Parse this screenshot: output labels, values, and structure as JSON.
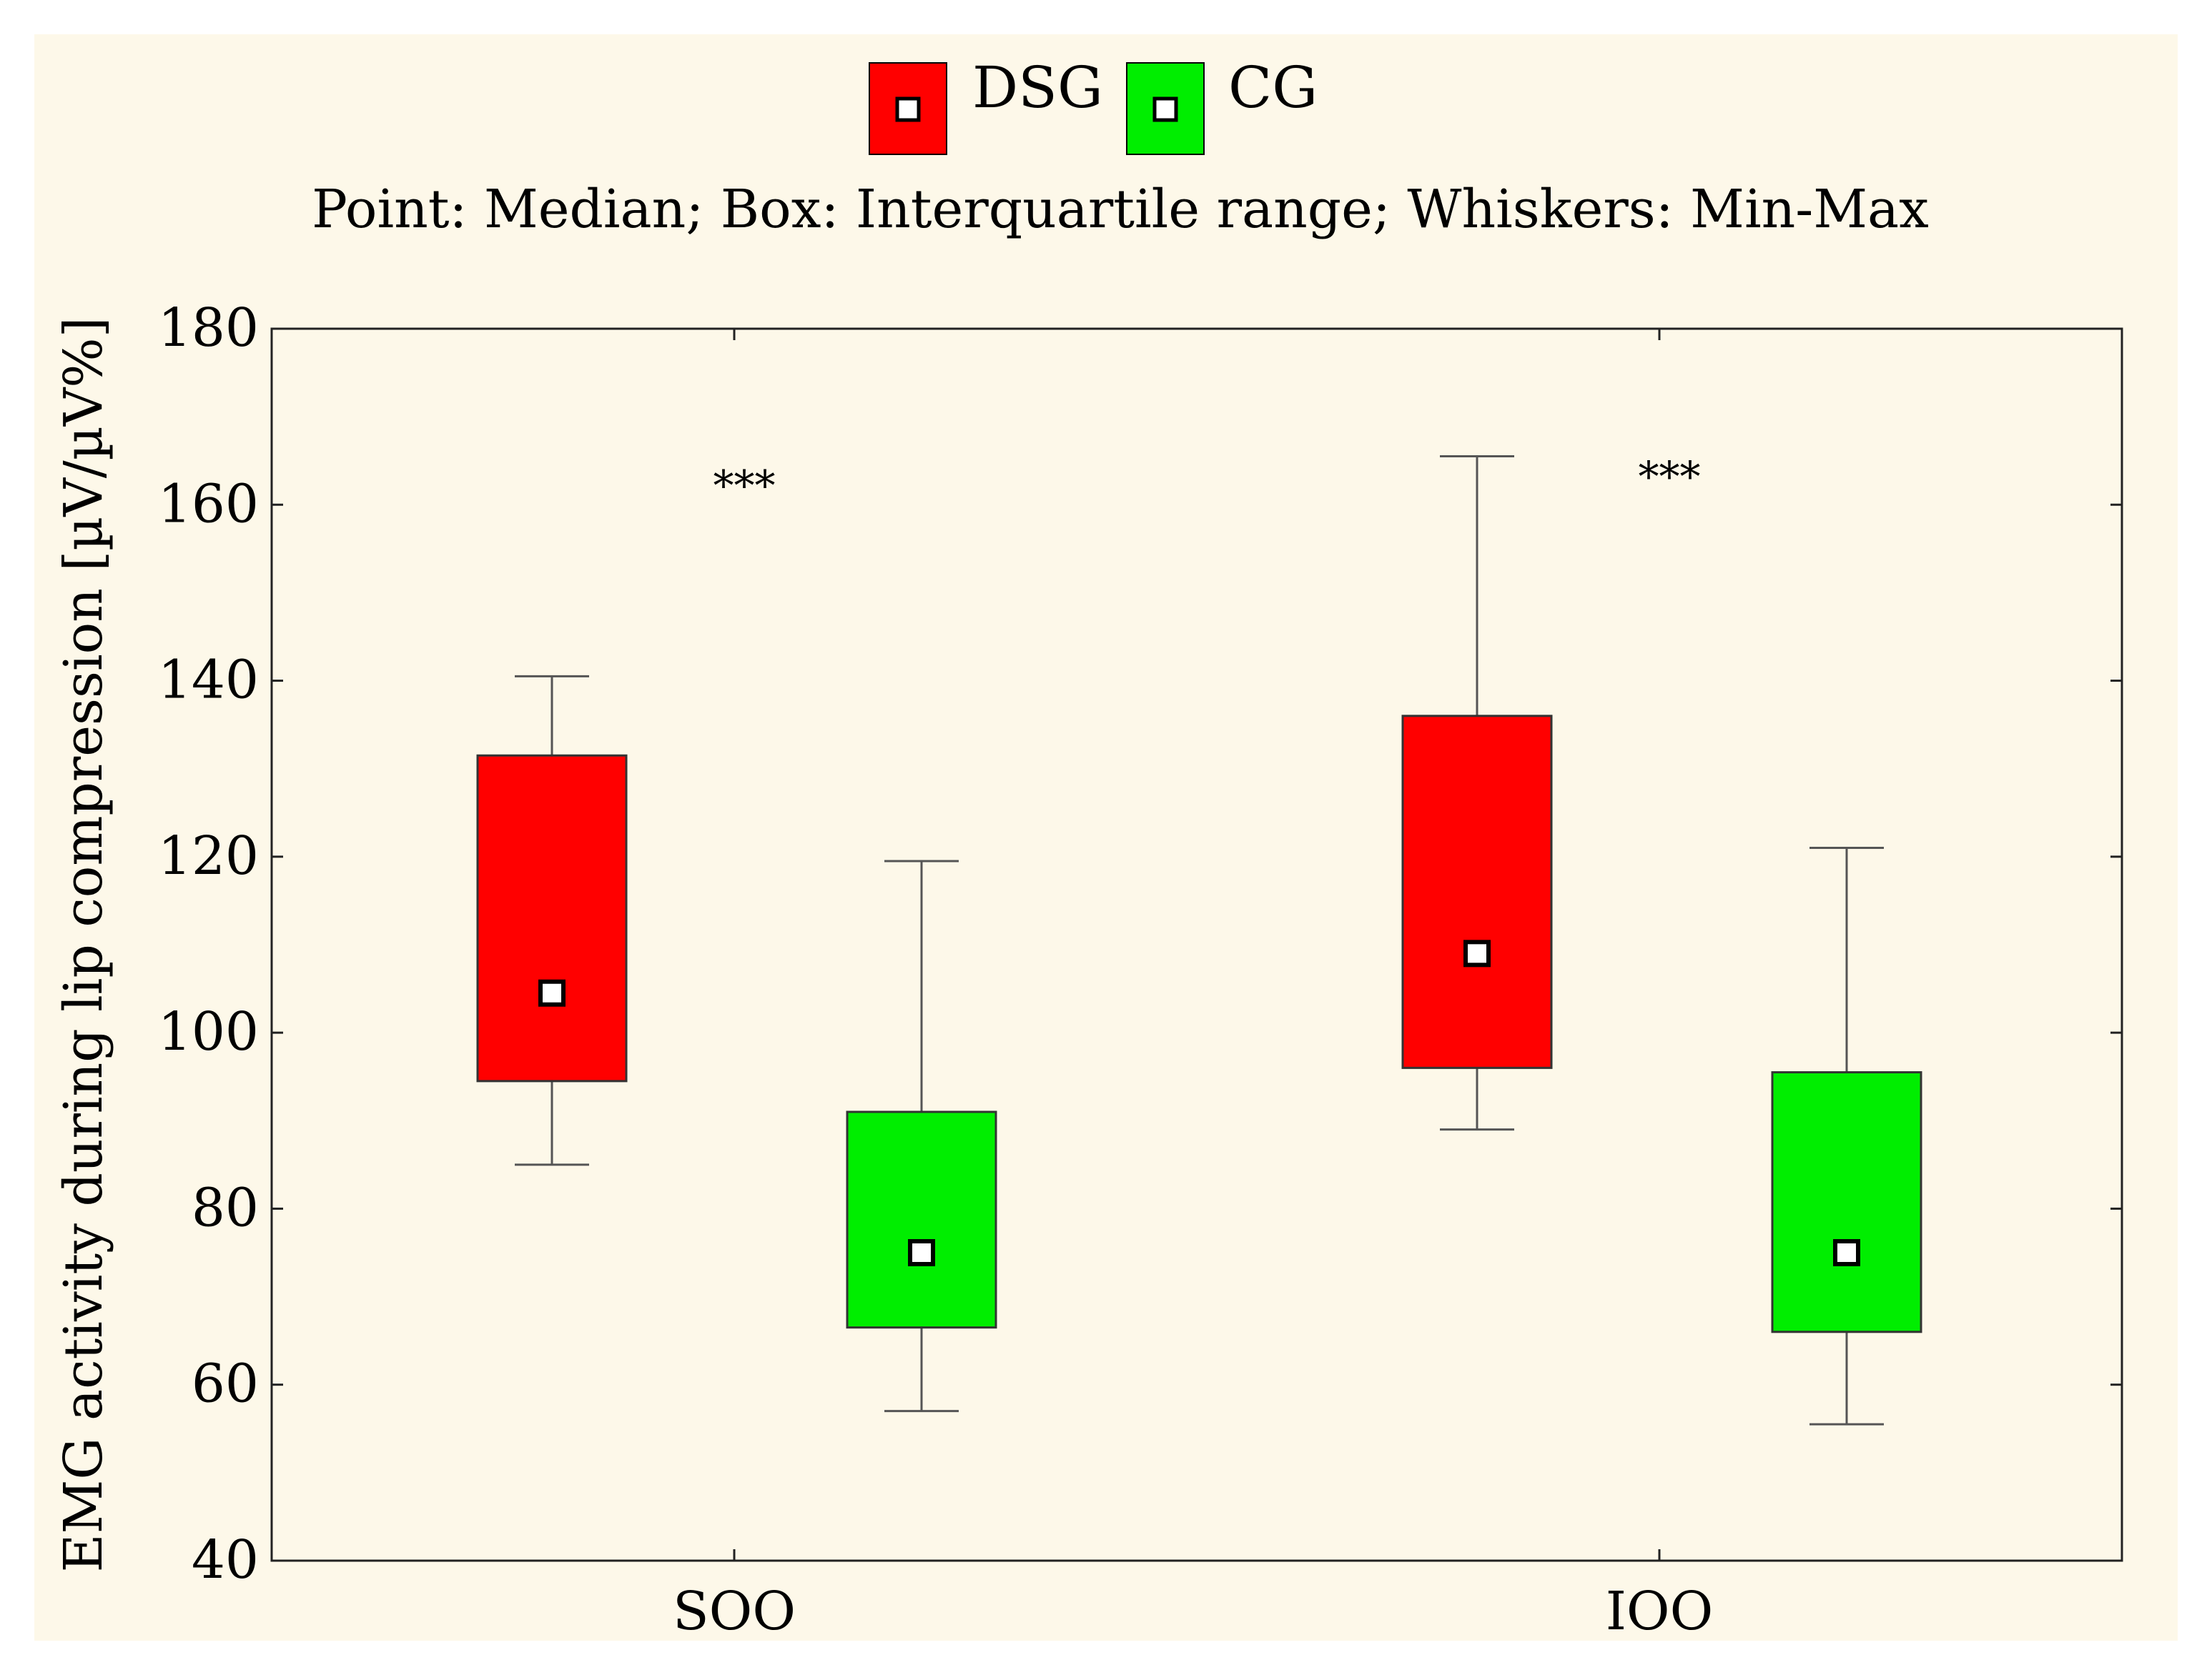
{
  "chart_data": {
    "type": "box",
    "subtitle": "Point: Median; Box: Interquartile range; Whiskers: Min-Max",
    "ylabel": "EMG activity during lip compression [µV/µV%]",
    "ylim": [
      40,
      180
    ],
    "yticks": [
      "40",
      "60",
      "80",
      "100",
      "120",
      "140",
      "160",
      "180"
    ],
    "grid": false,
    "legend_position": "top-center",
    "categories": [
      "SOO",
      "IOO"
    ],
    "series": [
      {
        "name": "DSG",
        "color": "#ff0000",
        "boxes": [
          {
            "category": "SOO",
            "min": 85,
            "q1": 94.5,
            "median": 104.5,
            "q3": 131.5,
            "max": 140.5
          },
          {
            "category": "IOO",
            "min": 89,
            "q1": 96,
            "median": 109,
            "q3": 136,
            "max": 165.5
          }
        ]
      },
      {
        "name": "CG",
        "color": "#00ee00",
        "boxes": [
          {
            "category": "SOO",
            "min": 57,
            "q1": 66.5,
            "median": 75,
            "q3": 91,
            "max": 119.5
          },
          {
            "category": "IOO",
            "min": 55.5,
            "q1": 66,
            "median": 75,
            "q3": 95.5,
            "max": 121
          }
        ]
      }
    ],
    "annotations": [
      {
        "category": "SOO",
        "text": "***",
        "y": 163
      },
      {
        "category": "IOO",
        "text": "***",
        "y": 164
      }
    ]
  }
}
